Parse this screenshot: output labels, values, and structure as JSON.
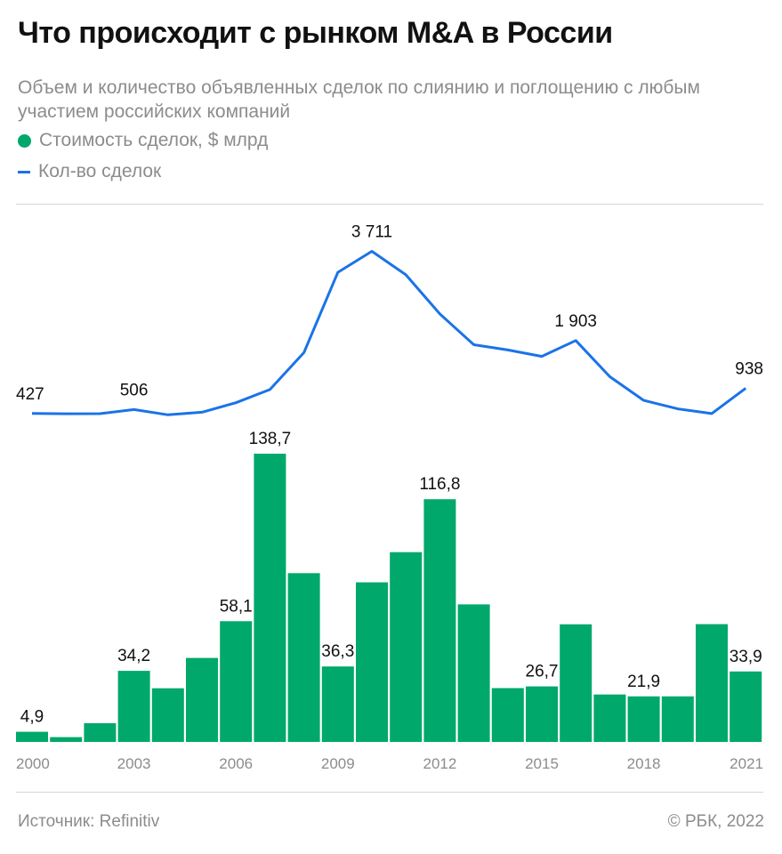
{
  "title": "Что происходит с рынком M&A в России",
  "subtitle": "Объем и количество объявленных сделок по слиянию и поглощению с любым участием российских компаний",
  "legend": {
    "bars_label": "Стоимость сделок, $ млрд",
    "line_label": "Кол-во сделок"
  },
  "source": "Источник: Refinitiv",
  "copyright": "© РБК, 2022",
  "colors": {
    "bar": "#00a86b",
    "line": "#1a73e8"
  },
  "chart_data": {
    "type": "bar+line",
    "x": [
      2000,
      2001,
      2002,
      2003,
      2004,
      2005,
      2006,
      2007,
      2008,
      2009,
      2010,
      2011,
      2012,
      2013,
      2014,
      2015,
      2016,
      2017,
      2018,
      2019,
      2020,
      2021
    ],
    "x_tick_labels": [
      "2000",
      "2003",
      "2006",
      "2009",
      "2012",
      "2015",
      "2018",
      "2021"
    ],
    "x_ticks": [
      2000,
      2003,
      2006,
      2009,
      2012,
      2015,
      2018,
      2021
    ],
    "series": [
      {
        "name": "Стоимость сделок, $ млрд",
        "kind": "bar",
        "values": [
          4.9,
          2.3,
          9.0,
          34.2,
          25.8,
          40.4,
          58.1,
          138.7,
          81.2,
          36.3,
          76.8,
          91.3,
          116.8,
          66.2,
          25.9,
          26.7,
          56.6,
          22.8,
          21.9,
          21.9,
          56.7,
          33.9
        ],
        "labels": {
          "2000": "4,9",
          "2003": "34,2",
          "2006": "58,1",
          "2007": "138,7",
          "2009": "36,3",
          "2012": "116,8",
          "2015": "26,7",
          "2018": "21,9",
          "2021": "33,9"
        }
      },
      {
        "name": "Кол-во сделок",
        "kind": "line",
        "values": [
          427,
          422,
          423,
          506,
          400,
          452,
          644,
          912,
          1658,
          3286,
          3711,
          3235,
          2443,
          1819,
          1713,
          1583,
          1903,
          1173,
          691,
          520,
          425,
          938
        ],
        "labels": {
          "2000": "427",
          "2003": "506",
          "2010": "3 711",
          "2016": "1 903",
          "2021": "938"
        }
      }
    ]
  }
}
